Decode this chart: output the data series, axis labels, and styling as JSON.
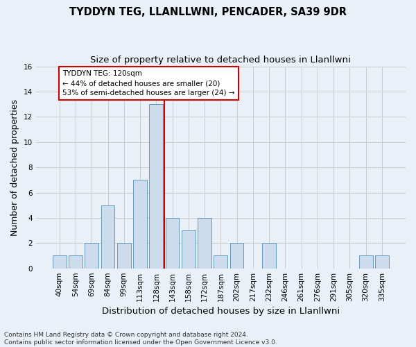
{
  "title": "TYDDYN TEG, LLANLLWNI, PENCADER, SA39 9DR",
  "subtitle": "Size of property relative to detached houses in Llanllwni",
  "xlabel": "Distribution of detached houses by size in Llanllwni",
  "ylabel": "Number of detached properties",
  "footnote": "Contains HM Land Registry data © Crown copyright and database right 2024.\nContains public sector information licensed under the Open Government Licence v3.0.",
  "bar_labels": [
    "40sqm",
    "54sqm",
    "69sqm",
    "84sqm",
    "99sqm",
    "113sqm",
    "128sqm",
    "143sqm",
    "158sqm",
    "172sqm",
    "187sqm",
    "202sqm",
    "217sqm",
    "232sqm",
    "246sqm",
    "261sqm",
    "276sqm",
    "291sqm",
    "305sqm",
    "320sqm",
    "335sqm"
  ],
  "bar_values": [
    1,
    1,
    2,
    5,
    2,
    7,
    13,
    4,
    3,
    4,
    1,
    2,
    0,
    2,
    0,
    0,
    0,
    0,
    0,
    1,
    1
  ],
  "bar_color": "#ccdcec",
  "bar_edgecolor": "#6699bb",
  "red_line_x": 6.5,
  "red_line_color": "#cc0000",
  "annotation_text": "TYDDYN TEG: 120sqm\n← 44% of detached houses are smaller (20)\n53% of semi-detached houses are larger (24) →",
  "annotation_box_edgecolor": "#cc0000",
  "ylim": [
    0,
    16
  ],
  "yticks": [
    0,
    2,
    4,
    6,
    8,
    10,
    12,
    14,
    16
  ],
  "grid_color": "#cccccc",
  "bg_color": "#eaf0f8",
  "plot_bg_color": "#eaf0f8",
  "title_fontsize": 10.5,
  "subtitle_fontsize": 9.5,
  "ylabel_fontsize": 9,
  "xlabel_fontsize": 9.5,
  "tick_fontsize": 7.5,
  "annotation_fontsize": 7.5,
  "footnote_fontsize": 6.5
}
